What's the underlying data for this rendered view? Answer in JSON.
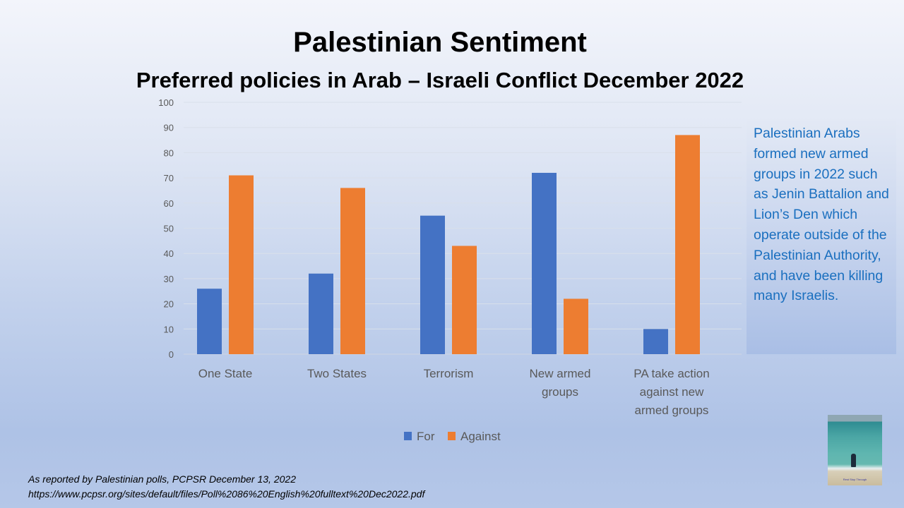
{
  "slide": {
    "title": "Palestinian Sentiment",
    "subtitle": "Preferred policies in Arab – Israeli Conflict December 2022",
    "callout_text": "Palestinian Arabs formed new armed groups in 2022 such as Jenin Battalion and Lion’s Den which operate outside of the Palestinian Authority, and have been killing many Israelis.",
    "thumbnail_caption": "Rest Stop Through",
    "source_line1": "As reported by Palestinian polls, PCPSR December 13, 2022",
    "source_line2": "https://www.pcpsr.org/sites/default/files/Poll%2086%20English%20fulltext%20Dec2022.pdf"
  },
  "chart_data": {
    "type": "bar",
    "title": "",
    "xlabel": "",
    "ylabel": "",
    "categories": [
      [
        "One State"
      ],
      [
        "Two States"
      ],
      [
        "Terrorism"
      ],
      [
        "New armed",
        "groups"
      ],
      [
        "PA take action",
        "against new",
        "armed groups"
      ]
    ],
    "series": [
      {
        "name": "For",
        "color": "#4472c4",
        "values": [
          26,
          32,
          55,
          72,
          10
        ]
      },
      {
        "name": "Against",
        "color": "#ed7d31",
        "values": [
          71,
          66,
          43,
          22,
          87
        ]
      }
    ],
    "ylim": [
      0,
      100
    ],
    "yticks": [
      0,
      10,
      20,
      30,
      40,
      50,
      60,
      70,
      80,
      90,
      100
    ],
    "grid": true,
    "legend": "bottom"
  }
}
